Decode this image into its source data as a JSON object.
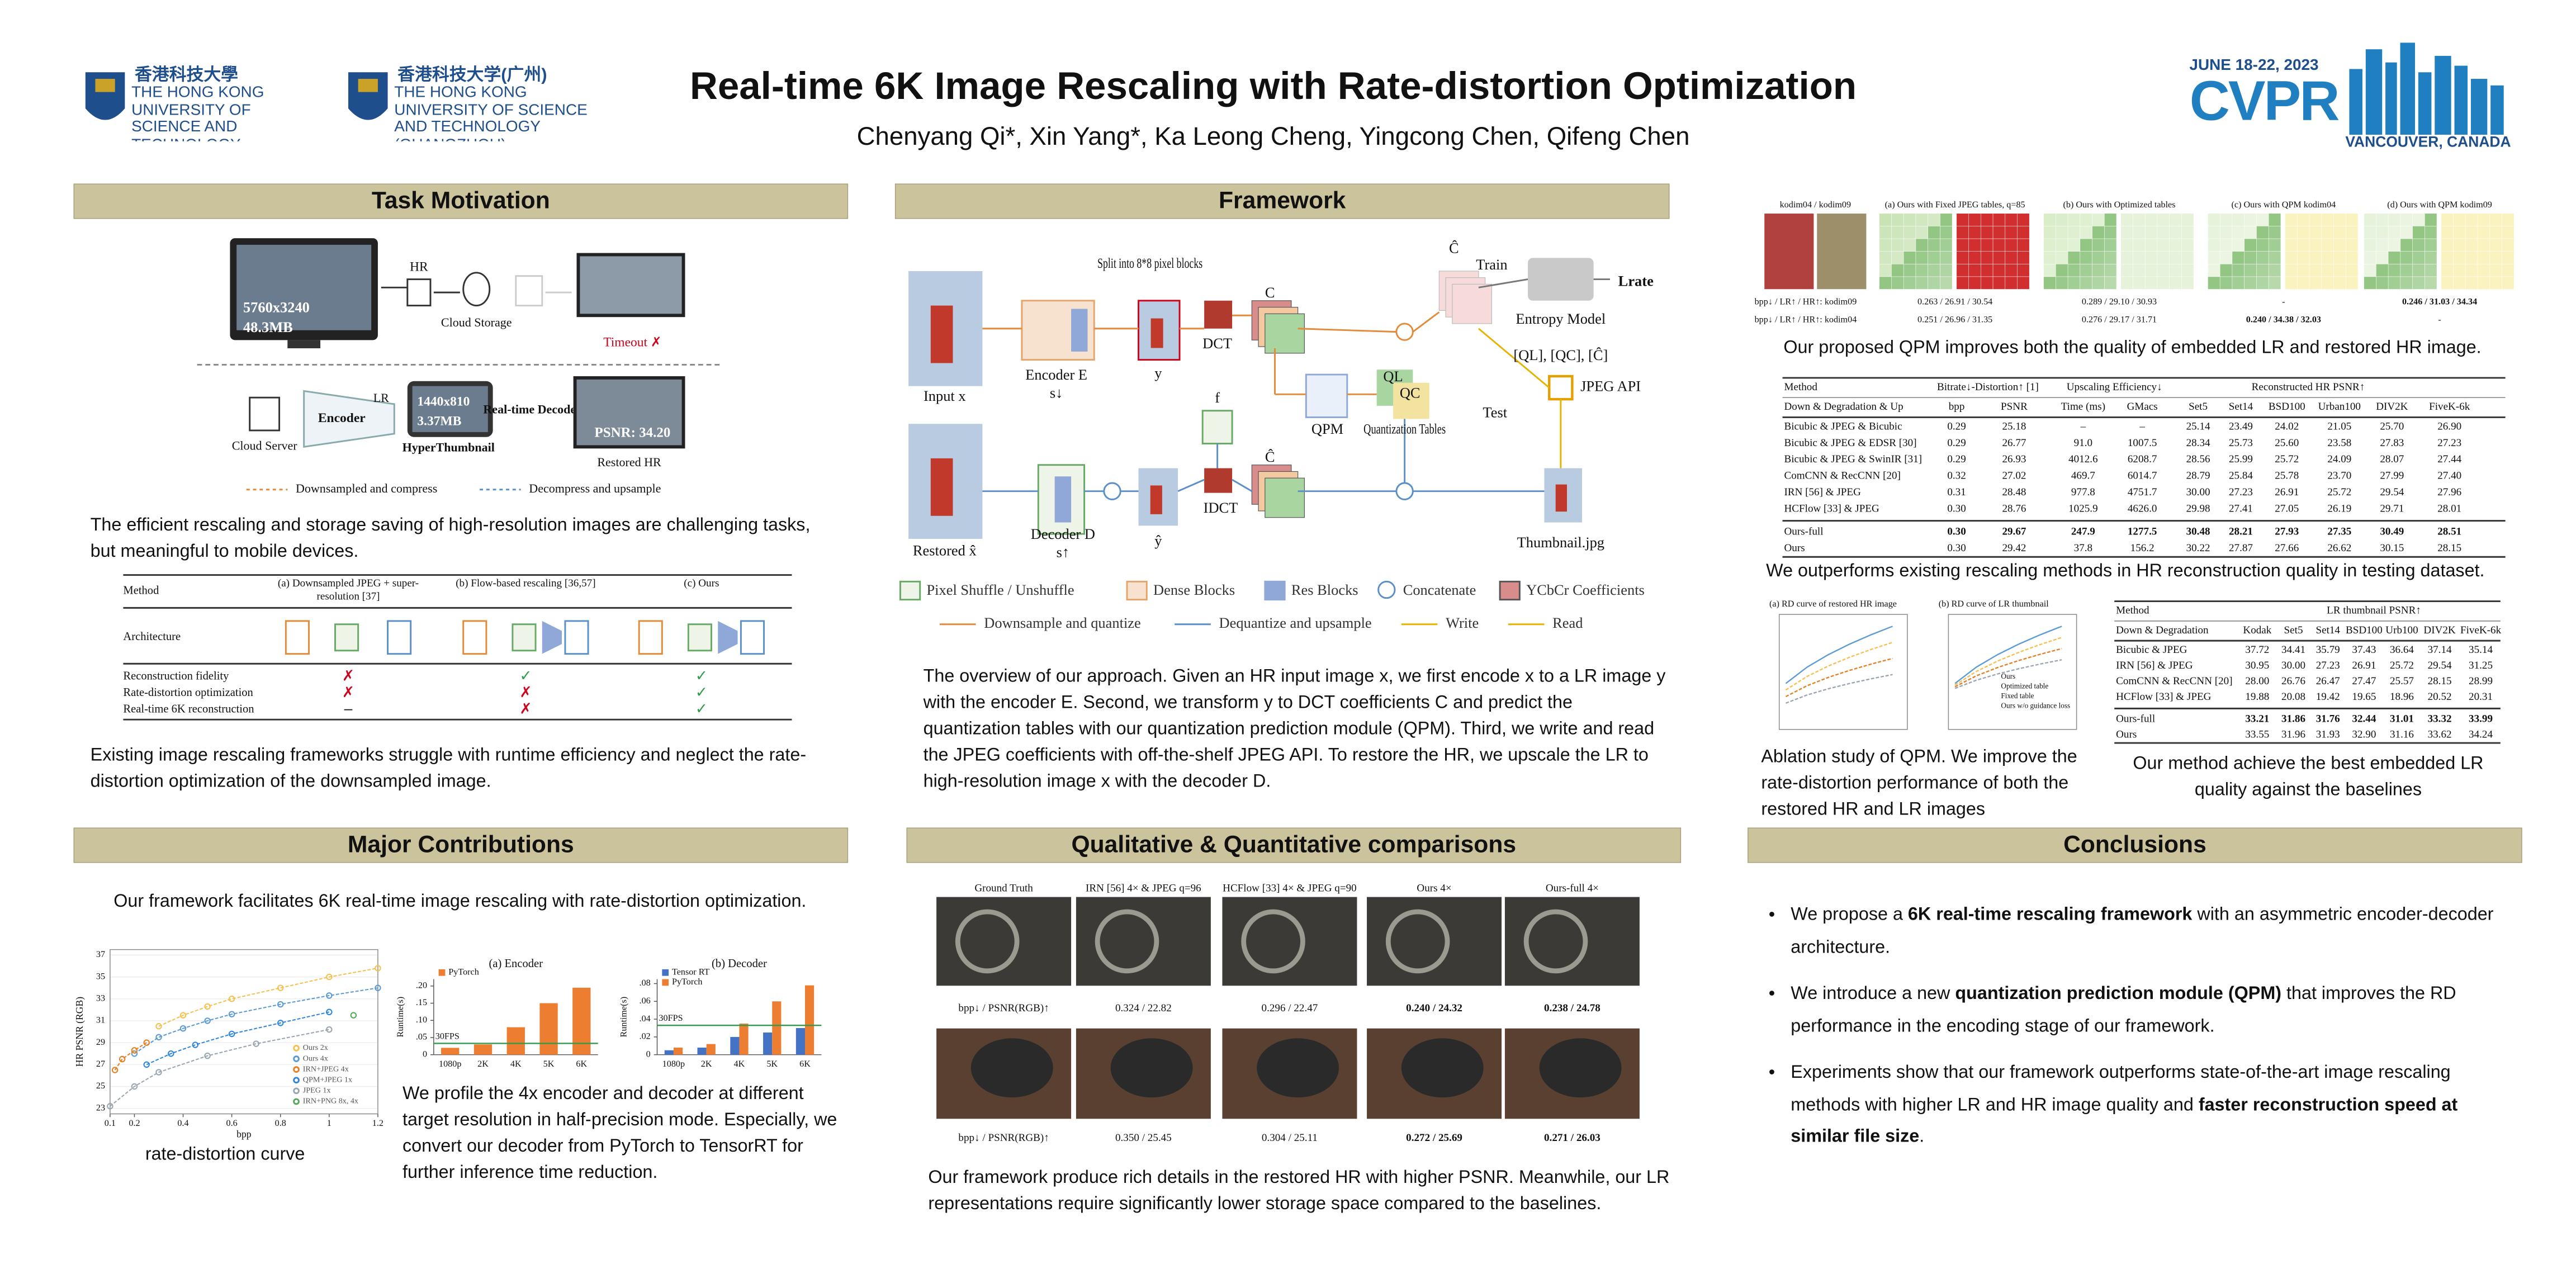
{
  "header": {
    "title": "Real-time 6K Image Rescaling with Rate-distortion Optimization",
    "authors": "Chenyang Qi*, Xin Yang*, Ka Leong Cheng, Yingcong Chen, Qifeng Chen",
    "logos": [
      {
        "chinese": "香港科技大學",
        "english": "THE HONG KONG UNIVERSITY OF SCIENCE AND TECHNOLOGY"
      },
      {
        "chinese": "香港科技大学(广州)",
        "english": "THE HONG KONG UNIVERSITY OF SCIENCE AND TECHNOLOGY (GUANGZHOU)"
      }
    ],
    "conference": {
      "dates": "JUNE 18-22, 2023",
      "name": "CVPR",
      "location": "VANCOUVER, CANADA"
    }
  },
  "task_motivation": {
    "title": "Task Motivation",
    "figure": {
      "hr_resolution": "5760x3240",
      "hr_size": "48.3MB",
      "hr": "HR",
      "cloud_storage": "Cloud Storage",
      "timeout": "Timeout ✗",
      "cloud_server": "Cloud Server",
      "encoder": "Encoder",
      "lr": "LR",
      "lr_resolution": "1440x810",
      "lr_size": "3.37MB",
      "hyperthumbnail": "HyperThumbnail",
      "decoder": "Real-time Decoder",
      "psnr": "PSNR: 34.20",
      "restored": "Restored HR",
      "legend": [
        "Downsampled and compress",
        "Decompress and upsample"
      ]
    },
    "text_1": "The efficient rescaling and storage saving of high-resolution images are challenging tasks, but meaningful to mobile devices.",
    "table": {
      "columns": [
        "Method",
        "(a) Downsampled JPEG + super-resolution [37]",
        "(b) Flow-based rescaling [36,57]",
        "(c) Ours"
      ],
      "architecture": "Architecture",
      "rows": [
        {
          "label": "Reconstruction fidelity",
          "marks": [
            "✗",
            "✓",
            "✓"
          ]
        },
        {
          "label": "Rate-distortion optimization",
          "marks": [
            "✗",
            "✗",
            "✓"
          ]
        },
        {
          "label": "Real-time 6K reconstruction",
          "marks": [
            "–",
            "✗",
            "✓"
          ]
        }
      ]
    },
    "text_2": "Existing image rescaling frameworks struggle with runtime efficiency and neglect the rate-distortion optimization of the downsampled image."
  },
  "framework": {
    "title": "Framework",
    "figure": {
      "input": "Input x",
      "encoder": "Encoder E",
      "s_down": "s↓",
      "split": "Split into 8*8 pixel blocks",
      "y": "y",
      "dct": "DCT",
      "c": "C",
      "qpm": "QPM",
      "qtables": "Quantization Tables",
      "ql": "QL",
      "qc": "QC",
      "c_hat_top": "Ĉ",
      "train": "Train",
      "entropy": "Entropy Model",
      "lrate": "Lrate",
      "stored": "[QL], [QC], [Ĉ]",
      "jpeg_api": "JPEG API",
      "test": "Test",
      "thumbnail": "Thumbnail.jpg",
      "f": "f",
      "idct": "IDCT",
      "y_hat": "ŷ",
      "c_hat": "Ĉ",
      "decoder": "Decoder D",
      "s_up": "s↑",
      "restored": "Restored x̂"
    },
    "legend": [
      "Pixel Shuffle / Unshuffle",
      "Dense Blocks",
      "Res Blocks",
      "Concatenate",
      "YCbCr Coefficients"
    ],
    "arrows": [
      "Downsample and quantize",
      "Dequantize and upsample",
      "Write",
      "Read"
    ],
    "text": "The overview of our approach. Given an HR input image x, we first encode x to a LR image y with the encoder E. Second, we transform y to DCT coefficients C and predict the quantization tables with our quantization prediction module (QPM). Third, we write and read the JPEG coefficients with off-the-shelf JPEG API. To restore the HR, we upscale the LR to high-resolution image x with the decoder D."
  },
  "qpm": {
    "columns": [
      "kodim04 / kodim09",
      "(a) Ours with Fixed JPEG tables, q=85",
      "(b) Ours with Optimized tables",
      "(c) Ours with QPM kodim04",
      "(d) Ours with QPM kodim09"
    ],
    "rows": [
      {
        "label": "bpp↓ / LR↑ / HR↑: kodim09",
        "values": [
          "0.263 / 26.91 / 30.54",
          "0.289 / 29.10 / 30.93",
          "-",
          "0.246 / 31.03 / 34.34"
        ]
      },
      {
        "label": "bpp↓ / LR↑ / HR↑: kodim04",
        "values": [
          "0.251 / 26.96 / 31.35",
          "0.276 / 29.17 / 31.71",
          "0.240 / 34.38 / 32.03",
          "-"
        ]
      }
    ],
    "caption": "Our proposed QPM improves both the quality of embedded LR and restored HR image."
  },
  "hr_table": {
    "header_groups": [
      "Method",
      "Bitrate↓-Distortion↑ [1]",
      "Upscaling Efficiency↓",
      "Reconstructed HR PSNR↑"
    ],
    "columns": [
      "Down & Degradation & Up",
      "bpp",
      "PSNR",
      "Time (ms)",
      "GMacs",
      "Set5",
      "Set14",
      "BSD100",
      "Urban100",
      "DIV2K",
      "FiveK-6k"
    ],
    "rows": [
      [
        "Bicubic & JPEG & Bicubic",
        "0.29",
        "25.18",
        "–",
        "–",
        "25.14",
        "23.49",
        "24.02",
        "21.05",
        "25.70",
        "26.90"
      ],
      [
        "Bicubic & JPEG & EDSR [30]",
        "0.29",
        "26.77",
        "91.0",
        "1007.5",
        "28.34",
        "25.73",
        "25.60",
        "23.58",
        "27.83",
        "27.23"
      ],
      [
        "Bicubic & JPEG & SwinIR [31]",
        "0.29",
        "26.93",
        "4012.6",
        "6208.7",
        "28.56",
        "25.99",
        "25.72",
        "24.09",
        "28.07",
        "27.44"
      ],
      [
        "ComCNN & RecCNN [20]",
        "0.32",
        "27.02",
        "469.7",
        "6014.7",
        "28.79",
        "25.84",
        "25.78",
        "23.70",
        "27.99",
        "27.40"
      ],
      [
        "IRN [56] & JPEG",
        "0.31",
        "28.48",
        "977.8",
        "4751.7",
        "30.00",
        "27.23",
        "26.91",
        "25.72",
        "29.54",
        "27.96"
      ],
      [
        "HCFlow [33] & JPEG",
        "0.30",
        "28.76",
        "1025.9",
        "4626.0",
        "29.98",
        "27.41",
        "27.05",
        "26.19",
        "29.71",
        "28.01"
      ],
      [
        "Ours-full",
        "0.30",
        "29.67",
        "247.9",
        "1277.5",
        "30.48",
        "28.21",
        "27.93",
        "27.35",
        "30.49",
        "28.51"
      ],
      [
        "Ours",
        "0.30",
        "29.42",
        "37.8",
        "156.2",
        "30.22",
        "27.87",
        "27.66",
        "26.62",
        "30.15",
        "28.15"
      ]
    ]
  },
  "hr_caption": "We outperforms existing rescaling methods in HR reconstruction quality in testing dataset.",
  "ablation": {
    "plot_titles": [
      "(a) RD curve of restored HR image",
      "(b) RD curve of LR thumbnail"
    ],
    "legend": [
      "Ours",
      "Optimized table",
      "Fixed table",
      "Ours w/o guidance loss"
    ],
    "caption": "Ablation study of QPM. We improve the rate-distortion performance of both the restored HR and LR images"
  },
  "lr_table": {
    "header_groups": [
      "Method",
      "LR thumbnail PSNR↑"
    ],
    "columns": [
      "Down & Degradation",
      "Kodak",
      "Set5",
      "Set14",
      "BSD100",
      "Urb100",
      "DIV2K",
      "FiveK-6k"
    ],
    "rows": [
      [
        "Bicubic & JPEG",
        "37.72",
        "34.41",
        "35.79",
        "37.43",
        "36.64",
        "37.14",
        "35.14"
      ],
      [
        "IRN [56] & JPEG",
        "30.95",
        "30.00",
        "27.23",
        "26.91",
        "25.72",
        "29.54",
        "31.25"
      ],
      [
        "ComCNN & RecCNN [20]",
        "28.00",
        "26.76",
        "26.47",
        "27.47",
        "25.57",
        "28.15",
        "28.99"
      ],
      [
        "HCFlow [33] & JPEG",
        "19.88",
        "20.08",
        "19.42",
        "19.65",
        "18.96",
        "20.52",
        "20.31"
      ],
      [
        "Ours-full",
        "33.21",
        "31.86",
        "31.76",
        "32.44",
        "31.01",
        "33.32",
        "33.99"
      ],
      [
        "Ours",
        "33.55",
        "31.96",
        "31.93",
        "32.90",
        "31.16",
        "33.62",
        "34.24"
      ]
    ]
  },
  "lr_caption": "Our method achieve the best embedded LR quality against the baselines",
  "contributions": {
    "title": "Major Contributions",
    "intro": "Our framework facilitates 6K real-time image rescaling with rate-distortion optimization.",
    "rd_chart": {
      "type": "line",
      "xlabel": "bpp",
      "ylabel": "HR PSNR (RGB)",
      "xlim": [
        0.1,
        1.2
      ],
      "xticks": [
        0.1,
        0.2,
        0.4,
        0.6,
        0.8,
        1,
        1.2
      ],
      "ylim": [
        22.5,
        37.5
      ],
      "yticks": [
        23,
        25,
        27,
        29,
        31,
        33,
        35,
        37
      ],
      "series": [
        {
          "name": "Ours 2x",
          "color": "#f5c04f",
          "x": [
            0.3,
            0.4,
            0.5,
            0.6,
            0.8,
            1.0,
            1.2
          ],
          "values": [
            30.5,
            31.5,
            32.3,
            33,
            34,
            35,
            35.8
          ]
        },
        {
          "name": "Ours 4x",
          "color": "#5b9bd5",
          "x": [
            0.2,
            0.3,
            0.4,
            0.5,
            0.6,
            0.8,
            1.0,
            1.2
          ],
          "values": [
            28,
            29.5,
            30.3,
            31,
            31.6,
            32.5,
            33.3,
            34
          ]
        },
        {
          "name": "IRN+JPEG 4x",
          "color": "#e67e22",
          "x": [
            0.12,
            0.15,
            0.2,
            0.25
          ],
          "values": [
            26.5,
            27.5,
            28.3,
            29
          ]
        },
        {
          "name": "QPM+JPEG 1x",
          "color": "#2e86de",
          "x": [
            0.25,
            0.35,
            0.45,
            0.6,
            0.8,
            1.0
          ],
          "values": [
            27,
            28,
            28.8,
            29.8,
            30.8,
            31.8
          ]
        },
        {
          "name": "JPEG 1x",
          "color": "#9aa5b1",
          "x": [
            0.1,
            0.2,
            0.3,
            0.5,
            0.7,
            1.0
          ],
          "values": [
            23.2,
            25,
            26.3,
            27.8,
            28.9,
            30.2
          ]
        },
        {
          "name": "IRN+PNG 8x, 4x",
          "color": "#58a55c",
          "x": [
            1.1
          ],
          "values": [
            31.5
          ]
        }
      ]
    },
    "rd_caption": "rate-distortion curve",
    "encoder_chart": {
      "type": "bar",
      "title": "(a) Encoder",
      "ylabel": "Runtime(s)",
      "categories": [
        "1080p",
        "2K",
        "4K",
        "5K",
        "6K"
      ],
      "series": [
        {
          "name": "PyTorch",
          "color": "#ed7d31",
          "values": [
            0.02,
            0.03,
            0.08,
            0.15,
            0.195
          ]
        }
      ],
      "ylim": [
        0,
        0.22
      ],
      "yticks": [
        0,
        {
          "value": 0.05,
          "label": ".05"
        },
        {
          "value": 0.1,
          "label": ".10"
        },
        {
          "value": 0.15,
          "label": ".15"
        },
        {
          "value": 0.2,
          "label": ".20"
        }
      ],
      "threshold": {
        "value": 0.033,
        "label": "30FPS"
      }
    },
    "decoder_chart": {
      "type": "bar",
      "title": "(b) Decoder",
      "ylabel": "Runtime(s)",
      "categories": [
        "1080p",
        "2K",
        "4K",
        "5K",
        "6K"
      ],
      "series": [
        {
          "name": "Tensor RT",
          "color": "#4472c4",
          "values": [
            0.005,
            0.008,
            0.02,
            0.025,
            0.03
          ]
        },
        {
          "name": "PyTorch",
          "color": "#ed7d31",
          "values": [
            0.008,
            0.012,
            0.035,
            0.06,
            0.078
          ]
        }
      ],
      "ylim": [
        0,
        0.085
      ],
      "yticks": [
        0,
        {
          "value": 0.02,
          "label": ".02"
        },
        {
          "value": 0.04,
          "label": ".04"
        },
        {
          "value": 0.06,
          "label": ".06"
        },
        {
          "value": 0.08,
          "label": ".08"
        }
      ],
      "threshold": {
        "value": 0.033,
        "label": "30FPS"
      }
    },
    "text": "We profile the 4x encoder and decoder at different target resolution in half-precision mode. Especially, we convert our decoder from PyTorch to TensorRT for further inference time reduction."
  },
  "qualitative": {
    "title": "Qualitative & Quantitative comparisons",
    "columns": [
      "Ground Truth",
      "IRN [56] 4× & JPEG q=96",
      "HCFlow [33] 4× & JPEG q=90",
      "Ours 4×",
      "Ours-full 4×"
    ],
    "rows": [
      {
        "label": "bpp↓ / PSNR(RGB)↑",
        "values": [
          "0.324 / 22.82",
          "0.296 / 22.47",
          "0.240 / 24.32",
          "0.238 / 24.78"
        ]
      },
      {
        "label": "bpp↓ / PSNR(RGB)↑",
        "values": [
          "0.350 / 25.45",
          "0.304 / 25.11",
          "0.272 / 25.69",
          "0.271 / 26.03"
        ]
      }
    ],
    "text": "Our framework produce rich details in the restored HR with higher PSNR. Meanwhile, our LR representations require significantly lower storage space compared to the baselines."
  },
  "conclusions": {
    "title": "Conclusions",
    "bullets": [
      [
        "We propose a ",
        "6K real-time rescaling framework",
        " with an asymmetric encoder-decoder architecture."
      ],
      [
        "We introduce a new ",
        "quantization prediction module (QPM)",
        " that improves the RD performance in the encoding stage of our framework."
      ],
      [
        "Experiments show that our framework outperforms state-of-the-art image rescaling methods with higher LR and HR image quality and ",
        "faster reconstruction speed at similar file size",
        "."
      ]
    ]
  }
}
